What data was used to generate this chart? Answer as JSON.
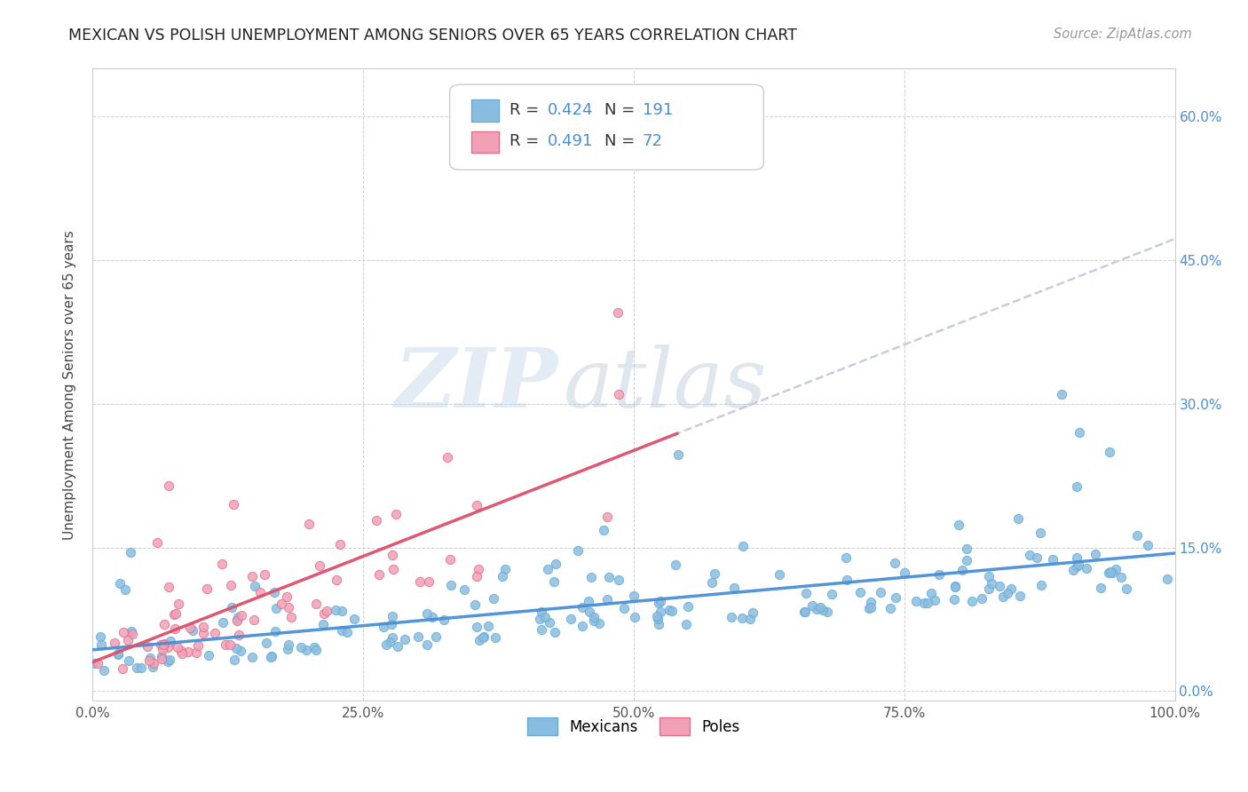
{
  "title": "MEXICAN VS POLISH UNEMPLOYMENT AMONG SENIORS OVER 65 YEARS CORRELATION CHART",
  "source": "Source: ZipAtlas.com",
  "ylabel": "Unemployment Among Seniors over 65 years",
  "xlim": [
    0.0,
    1.0
  ],
  "ylim": [
    -0.01,
    0.65
  ],
  "x_ticks": [
    0.0,
    0.25,
    0.5,
    0.75,
    1.0
  ],
  "x_tick_labels": [
    "0.0%",
    "25.0%",
    "50.0%",
    "75.0%",
    "100.0%"
  ],
  "y_ticks": [
    0.0,
    0.15,
    0.3,
    0.45,
    0.6
  ],
  "y_tick_labels": [
    "0.0%",
    "15.0%",
    "30.0%",
    "45.0%",
    "60.0%"
  ],
  "mexican_color": "#89bde0",
  "polish_color": "#f2a0b5",
  "mexican_edge": "#6aaad4",
  "polish_edge": "#e07090",
  "trend_mexican_color": "#4a8fd4",
  "trend_polish_color": "#e0506a",
  "trend_dashed_color": "#c0c8d8",
  "legend_r_mexican": "R = 0.424",
  "legend_n_mexican": "N = 191",
  "legend_r_polish": "R = 0.491",
  "legend_n_polish": "N = 72",
  "legend_value_color": "#4a8fd4",
  "background_color": "#ffffff",
  "watermark_zip": "ZIP",
  "watermark_atlas": "atlas",
  "mexican_R": 0.424,
  "mexican_N": 191,
  "polish_R": 0.491,
  "polish_N": 72
}
